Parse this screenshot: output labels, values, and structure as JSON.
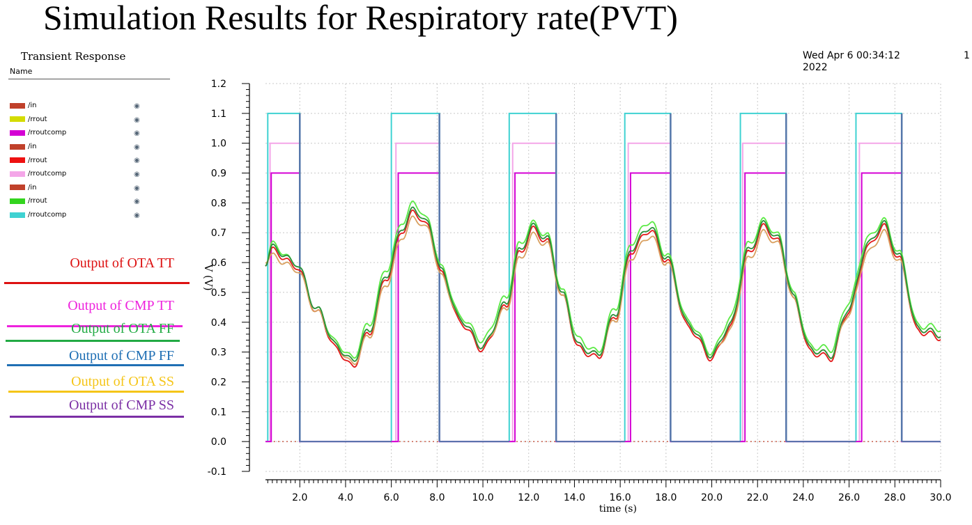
{
  "page": {
    "title": "Simulation Results for Respiratory rate(PVT)",
    "panel_title": "Transient Response",
    "name_header": "Name",
    "date_line1": "Wed Apr 6 00:34:12",
    "date_line2": "2022",
    "edge_number": "1"
  },
  "legend": [
    {
      "label": "/in",
      "color": "#c0402a"
    },
    {
      "label": "/rrout",
      "color": "#d4dc00"
    },
    {
      "label": "/rroutcomp",
      "color": "#d400d4"
    },
    {
      "label": "/in",
      "color": "#c0402a"
    },
    {
      "label": "/rrout",
      "color": "#ee1111"
    },
    {
      "label": "/rroutcomp",
      "color": "#f4a6e8"
    },
    {
      "label": "/in",
      "color": "#c0402a"
    },
    {
      "label": "/rrout",
      "color": "#33d41e"
    },
    {
      "label": "/rroutcomp",
      "color": "#3fd2d2"
    }
  ],
  "annotations": [
    {
      "text": "Output of OTA TT",
      "color": "#dd1111"
    },
    {
      "text": "Output of CMP TT",
      "color": "#ee22dd"
    },
    {
      "text": "Output of OTA FF",
      "color": "#22aa44"
    },
    {
      "text": "Output of CMP FF",
      "color": "#1f6fb4"
    },
    {
      "text": "Output of OTA SS",
      "color": "#f5c518"
    },
    {
      "text": "Output of CMP SS",
      "color": "#7b2fa5"
    }
  ],
  "chart_data": {
    "type": "line",
    "title": "Transient Response",
    "xlabel": "time (s)",
    "ylabel": "V (V)",
    "xlim": [
      0.5,
      30.0
    ],
    "ylim": [
      -0.1,
      1.2
    ],
    "xticks": [
      "2.0",
      "4.0",
      "6.0",
      "8.0",
      "10.0",
      "12.0",
      "14.0",
      "16.0",
      "18.0",
      "20.0",
      "22.0",
      "24.0",
      "26.0",
      "28.0",
      "30.0"
    ],
    "xtick_values": [
      2,
      4,
      6,
      8,
      10,
      12,
      14,
      16,
      18,
      20,
      22,
      24,
      26,
      28,
      30
    ],
    "yticks": [
      "-0.1",
      "0.0",
      "0.1",
      "0.2",
      "0.3",
      "0.4",
      "0.5",
      "0.6",
      "0.7",
      "0.8",
      "0.9",
      "1.0",
      "1.1",
      "1.2"
    ],
    "ytick_values": [
      -0.1,
      0.0,
      0.1,
      0.2,
      0.3,
      0.4,
      0.5,
      0.6,
      0.7,
      0.8,
      0.9,
      1.0,
      1.1,
      1.2
    ],
    "grid": true,
    "pulse_windows": [
      [
        0.6,
        2.0
      ],
      [
        6.0,
        8.1
      ],
      [
        11.15,
        13.2
      ],
      [
        16.2,
        18.2
      ],
      [
        21.25,
        23.25
      ],
      [
        26.3,
        28.3
      ]
    ],
    "pulse_series": [
      {
        "name": "/rroutcomp (FF)",
        "high": 1.1,
        "color": "#3fd2d2",
        "starts": [
          0.6,
          6.0,
          11.15,
          16.2,
          21.25,
          26.3
        ],
        "ends": [
          2.0,
          8.1,
          13.2,
          18.2,
          23.25,
          28.3
        ]
      },
      {
        "name": "/rroutcomp (SS)",
        "high": 1.0,
        "color": "#f4a6e8",
        "starts": [
          0.7,
          6.2,
          11.3,
          16.35,
          21.35,
          26.45
        ],
        "ends": [
          2.0,
          8.1,
          13.2,
          18.2,
          23.25,
          28.3
        ]
      },
      {
        "name": "/rroutcomp (TT)",
        "high": 0.9,
        "color": "#d400d4",
        "starts": [
          0.75,
          6.3,
          11.4,
          16.45,
          21.45,
          26.55
        ],
        "ends": [
          2.0,
          8.1,
          13.2,
          18.2,
          23.25,
          28.3
        ]
      }
    ],
    "pulse_low": 0.0,
    "pulse_fall_color": "#5577aa",
    "in_series": {
      "name": "/in",
      "color": "#c0402a",
      "value": 0.0
    },
    "wave_series": [
      {
        "name": "/rrout (FF)",
        "color": "#5bea45",
        "x": [
          0.5,
          0.8,
          1.8,
          2.8,
          3.6,
          4.3,
          5.0,
          5.8,
          6.5,
          7.0,
          7.6,
          8.2,
          9.0,
          10.0,
          11.0,
          11.6,
          12.2,
          12.8,
          13.5,
          14.2,
          15.0,
          15.8,
          16.5,
          17.3,
          18.0,
          19.0,
          20.0,
          20.8,
          21.6,
          22.3,
          22.9,
          23.6,
          24.3,
          25.2,
          26.0,
          26.8,
          27.5,
          28.2,
          29.0,
          30.0
        ],
        "y": [
          0.6,
          0.66,
          0.6,
          0.44,
          0.33,
          0.28,
          0.39,
          0.58,
          0.74,
          0.8,
          0.74,
          0.58,
          0.42,
          0.34,
          0.48,
          0.66,
          0.73,
          0.69,
          0.5,
          0.34,
          0.3,
          0.45,
          0.67,
          0.74,
          0.63,
          0.4,
          0.3,
          0.41,
          0.66,
          0.74,
          0.69,
          0.49,
          0.32,
          0.31,
          0.47,
          0.68,
          0.74,
          0.63,
          0.39,
          0.38
        ]
      },
      {
        "name": "/rrout (TT)",
        "color": "#e21a1a",
        "x": [
          0.5,
          0.8,
          1.8,
          2.8,
          3.6,
          4.3,
          5.0,
          5.8,
          6.5,
          7.0,
          7.6,
          8.2,
          9.0,
          10.0,
          11.0,
          11.6,
          12.2,
          12.8,
          13.5,
          14.2,
          15.0,
          15.8,
          16.5,
          17.3,
          18.0,
          19.0,
          20.0,
          20.8,
          21.6,
          22.3,
          22.9,
          23.6,
          24.3,
          25.2,
          26.0,
          26.8,
          27.5,
          28.2,
          29.0,
          30.0
        ],
        "y": [
          0.6,
          0.64,
          0.59,
          0.43,
          0.31,
          0.25,
          0.36,
          0.55,
          0.71,
          0.77,
          0.72,
          0.56,
          0.4,
          0.31,
          0.45,
          0.63,
          0.71,
          0.67,
          0.48,
          0.31,
          0.28,
          0.42,
          0.64,
          0.71,
          0.61,
          0.38,
          0.28,
          0.38,
          0.63,
          0.72,
          0.67,
          0.47,
          0.3,
          0.28,
          0.44,
          0.65,
          0.72,
          0.61,
          0.37,
          0.35
        ]
      },
      {
        "name": "/rrout (SS)",
        "color": "#d9a060",
        "x": [
          0.5,
          0.8,
          1.8,
          2.8,
          3.6,
          4.3,
          5.0,
          5.8,
          6.5,
          7.0,
          7.6,
          8.2,
          9.0,
          10.0,
          11.0,
          11.6,
          12.2,
          12.8,
          13.5,
          14.2,
          15.0,
          15.8,
          16.5,
          17.3,
          18.0,
          19.0,
          20.0,
          20.8,
          21.6,
          22.3,
          22.9,
          23.6,
          24.3,
          25.2,
          26.0,
          26.8,
          27.5,
          28.2,
          29.0,
          30.0
        ],
        "y": [
          0.61,
          0.62,
          0.58,
          0.43,
          0.32,
          0.26,
          0.35,
          0.53,
          0.69,
          0.75,
          0.71,
          0.55,
          0.41,
          0.32,
          0.44,
          0.61,
          0.69,
          0.66,
          0.48,
          0.32,
          0.29,
          0.41,
          0.62,
          0.69,
          0.6,
          0.39,
          0.29,
          0.37,
          0.61,
          0.7,
          0.66,
          0.47,
          0.31,
          0.29,
          0.43,
          0.63,
          0.7,
          0.6,
          0.38,
          0.36
        ]
      },
      {
        "name": "/rrout (center)",
        "color": "#2a8f3a",
        "x": [
          0.5,
          0.8,
          1.8,
          2.8,
          3.6,
          4.3,
          5.0,
          5.8,
          6.5,
          7.0,
          7.6,
          8.2,
          9.0,
          10.0,
          11.0,
          11.6,
          12.2,
          12.8,
          13.5,
          14.2,
          15.0,
          15.8,
          16.5,
          17.3,
          18.0,
          19.0,
          20.0,
          20.8,
          21.6,
          22.3,
          22.9,
          23.6,
          24.3,
          25.2,
          26.0,
          26.8,
          27.5,
          28.2,
          29.0,
          30.0
        ],
        "y": [
          0.6,
          0.65,
          0.6,
          0.44,
          0.32,
          0.27,
          0.37,
          0.56,
          0.72,
          0.78,
          0.73,
          0.57,
          0.41,
          0.32,
          0.46,
          0.64,
          0.72,
          0.68,
          0.49,
          0.32,
          0.29,
          0.43,
          0.65,
          0.72,
          0.62,
          0.39,
          0.29,
          0.39,
          0.64,
          0.73,
          0.68,
          0.48,
          0.31,
          0.29,
          0.45,
          0.66,
          0.73,
          0.62,
          0.38,
          0.36
        ]
      }
    ]
  }
}
